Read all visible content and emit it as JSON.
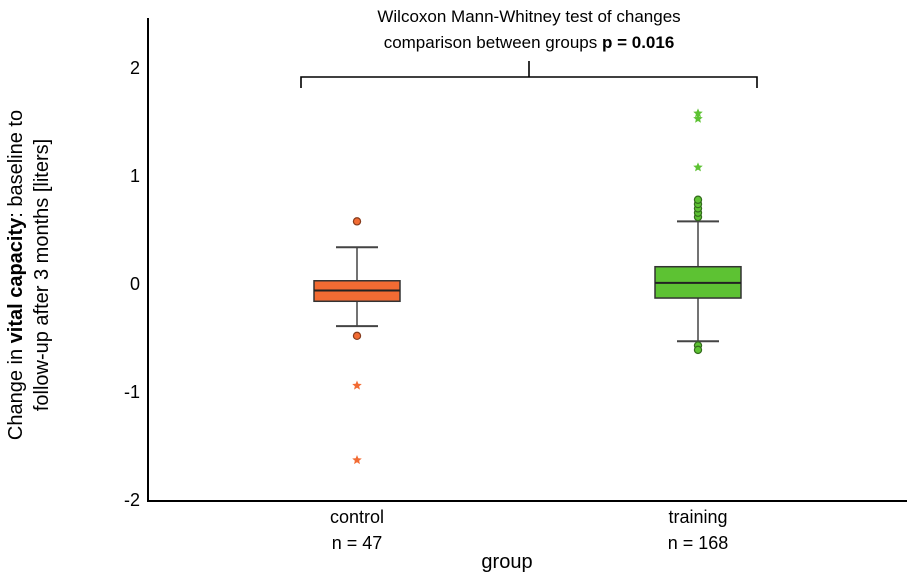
{
  "chart_data": {
    "type": "box",
    "ylabel_parts": [
      "Change in ",
      "vital capacity",
      ": baseline to",
      "follow-up after 3 months [liters]"
    ],
    "xlabel": "group",
    "ylim": [
      -2,
      2.4
    ],
    "yticks": [
      2,
      1,
      0,
      -1,
      -2
    ],
    "grid": false,
    "annotation": {
      "line1": "Wilcoxon Mann-Whitney test of changes",
      "line2_prefix": "comparison between groups ",
      "line2_bold": "p = 0.016"
    },
    "groups": [
      {
        "category": "control",
        "n_label": "n = 47",
        "color": "#F26B33",
        "whisker_low": -0.39,
        "q1": -0.16,
        "median": -0.06,
        "q3": 0.03,
        "whisker_high": 0.34,
        "outliers": [
          0.58,
          -0.48
        ],
        "extremes": [
          -0.94,
          -1.63
        ]
      },
      {
        "category": "training",
        "n_label": "n = 168",
        "color": "#5DC233",
        "whisker_low": -0.53,
        "q1": -0.13,
        "median": 0.01,
        "q3": 0.16,
        "whisker_high": 0.58,
        "outliers": [
          0.62,
          0.66,
          0.7,
          0.74,
          0.78,
          -0.57,
          -0.61
        ],
        "extremes": [
          1.08,
          1.53,
          1.58
        ]
      }
    ]
  }
}
